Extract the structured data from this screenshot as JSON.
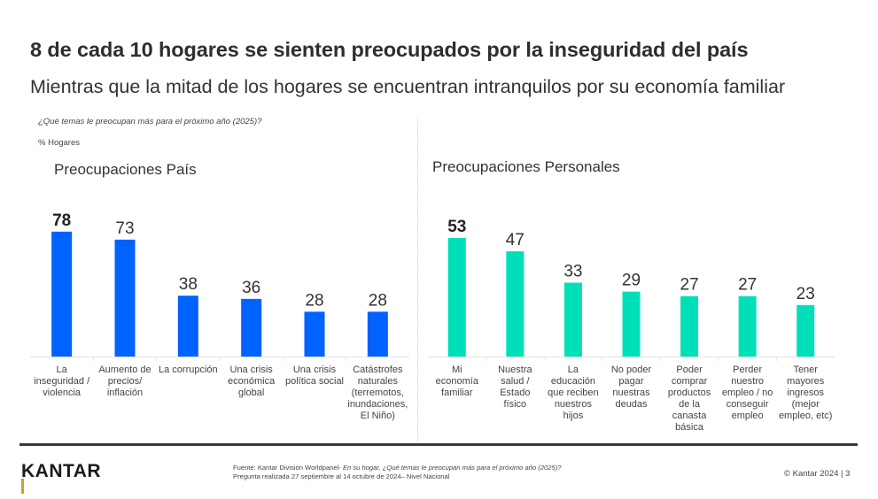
{
  "slide": {
    "title": "8 de cada 10 hogares se sienten preocupados por la inseguridad del país",
    "subtitle": "Mientras que la mitad de los hogares se encuentran intranquilos por su economía familiar",
    "question": "¿Qué temas le preocupan más para el próximo año (2025)?",
    "unit_label": "% Hogares"
  },
  "colors": {
    "pais_bar": "#0062FF",
    "personal_bar": "#00E0B8",
    "logo_accent": "#C9A227"
  },
  "chart_data": [
    {
      "type": "bar",
      "title": "Preocupaciones País",
      "xlabel": "",
      "ylabel": "% Hogares",
      "ylim": [
        0,
        100
      ],
      "grid": false,
      "categories": [
        "La inseguridad / violencia",
        "Aumento de precios/ inflación",
        "La corrupción",
        "Una crisis económica global",
        "Una crisis política social",
        "Catástrofes naturales (terremotos, inundaciones, El Niño)"
      ],
      "category_lines": [
        [
          "La",
          "inseguridad /",
          "violencia"
        ],
        [
          "Aumento de",
          "precios/",
          "inflación"
        ],
        [
          "La corrupción"
        ],
        [
          "Una crisis",
          "económica",
          "global"
        ],
        [
          "Una crisis",
          "política social"
        ],
        [
          "Catástrofes",
          "naturales",
          "(terremotos,",
          "inundaciones,",
          "El Niño)"
        ]
      ],
      "values": [
        78,
        73,
        38,
        36,
        28,
        28
      ],
      "data_labels": [
        "78",
        "73",
        "38",
        "36",
        "28",
        "28"
      ],
      "highlight_index": 0
    },
    {
      "type": "bar",
      "title": "Preocupaciones Personales",
      "xlabel": "",
      "ylabel": "% Hogares",
      "ylim": [
        0,
        100
      ],
      "grid": false,
      "categories": [
        "Mi economía familiar",
        "Nuestra salud / Estado físico",
        "La educación que reciben nuestros hijos",
        "No poder pagar nuestras deudas",
        "Poder comprar productos de la canasta básica",
        "Perder nuestro empleo / no conseguir empleo",
        "Tener mayores ingresos (mejor empleo, etc)"
      ],
      "category_lines": [
        [
          "Mi",
          "economía",
          "familiar"
        ],
        [
          "Nuestra",
          "salud /",
          "Estado",
          "físico"
        ],
        [
          "La",
          "educación",
          "que reciben",
          "nuestros",
          "hijos"
        ],
        [
          "No poder",
          "pagar",
          "nuestras",
          "deudas"
        ],
        [
          "Poder",
          "comprar",
          "productos",
          "de la",
          "canasta",
          "básica"
        ],
        [
          "Perder",
          "nuestro",
          "empleo / no",
          "conseguir",
          "empleo"
        ],
        [
          "Tener",
          "mayores",
          "ingresos",
          "(mejor",
          "empleo, etc)"
        ]
      ],
      "values": [
        53,
        47,
        33,
        29,
        27,
        27,
        23
      ],
      "data_labels": [
        "53",
        "47",
        "33",
        "29",
        "27",
        "27",
        "23"
      ],
      "highlight_index": 0
    }
  ],
  "footer": {
    "logo": "KANTAR",
    "source_prefix": "Fuente: Kantar División Worldpanel- ",
    "source_italic": "En su hogar, ¿Qué temas le preocupan más para el próximo año (2025)?",
    "source_line2": "Pregunta realizada 27 septiembre al 14 octubre de 2024– Nivel Nacional",
    "copyright": "© Kantar 2024 | 3"
  }
}
